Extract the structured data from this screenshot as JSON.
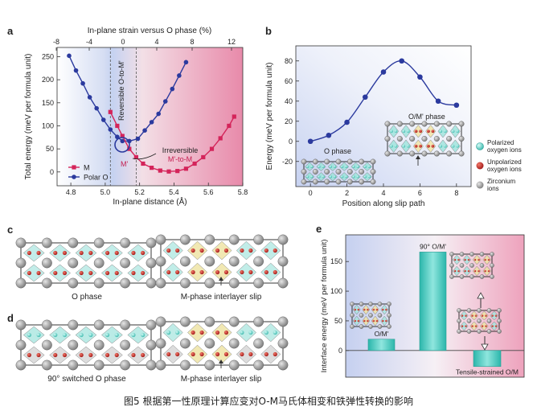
{
  "caption": "图5 根据第一性原理计算应变对O-M马氏体相变和铁弹性转换的影响",
  "colors": {
    "blue": "#2b3a9e",
    "crimson": "#d4245a",
    "cyan": "#54cfc4",
    "pink": "#ea98b2",
    "lightblue": "#c8d3f2"
  },
  "panel_a": {
    "letter": "a",
    "top_axis_label": "In-plane strain versus O phase (%)",
    "top_ticks": [
      "-8",
      "-4",
      "0",
      "4",
      "8",
      "12"
    ],
    "annotations": {
      "reversible": "Reversible O-to-M'",
      "irreversible_1": "Irreversible",
      "irreversible_2": "M'-to-M",
      "mprime": "M'"
    }
  },
  "panel_b": {
    "letter": "b",
    "annotation_mprime": "O/M' phase",
    "annotation_o": "O phase",
    "legend": [
      "Polarized oxygen ions",
      "Unpolarized oxygen ions",
      "Zirconium ions"
    ]
  },
  "panel_c": {
    "letter": "c",
    "left_label": "O phase",
    "right_label": "M-phase interlayer slip"
  },
  "panel_d": {
    "letter": "d",
    "left_label": "90° switched O phase",
    "right_label": "M-phase interlayer slip"
  },
  "chart_data": [
    {
      "type": "line",
      "panel": "a",
      "xlabel": "In-plane distance (Å)",
      "ylabel": "Total energy (meV per formula unit)",
      "xlim": [
        4.72,
        5.8
      ],
      "ylim": [
        -30,
        270
      ],
      "xticks": [
        "4.8",
        "5.0",
        "5.2",
        "5.4",
        "5.6",
        "5.8"
      ],
      "yticks": [
        "0",
        "50",
        "100",
        "150",
        "200",
        "250"
      ],
      "legend_position": "bottom-left",
      "dashed_lines_x": [
        5.03,
        5.18
      ],
      "series": [
        {
          "name": "Polar O",
          "x": [
            4.79,
            4.83,
            4.87,
            4.91,
            4.95,
            4.99,
            5.03,
            5.07,
            5.1,
            5.14,
            5.19,
            5.23,
            5.27,
            5.31,
            5.35,
            5.39,
            5.43,
            5.47
          ],
          "y": [
            252,
            220,
            192,
            162,
            138,
            113,
            92,
            76,
            67,
            67,
            72,
            90,
            108,
            126,
            153,
            180,
            209,
            238
          ]
        },
        {
          "name": "M",
          "x": [
            5.03,
            5.07,
            5.1,
            5.14,
            5.18,
            5.22,
            5.27,
            5.32,
            5.37,
            5.42,
            5.47,
            5.52,
            5.57,
            5.62,
            5.67,
            5.72,
            5.75
          ],
          "y": [
            130,
            100,
            78,
            50,
            32,
            18,
            9,
            3,
            1,
            2,
            7,
            18,
            32,
            50,
            73,
            100,
            120
          ]
        }
      ]
    },
    {
      "type": "line",
      "panel": "b",
      "xlabel": "Position along slip path",
      "ylabel": "Energy (meV per formula unit)",
      "xlim": [
        -0.8,
        8.8
      ],
      "ylim": [
        -45,
        95
      ],
      "xticks": [
        "0",
        "2",
        "4",
        "6",
        "8"
      ],
      "yticks": [
        "-20",
        "0",
        "20",
        "40",
        "60",
        "80"
      ],
      "x": [
        0,
        1,
        2,
        3,
        4,
        5,
        6,
        7,
        8
      ],
      "y": [
        0,
        6,
        19,
        44,
        69,
        80,
        64,
        40,
        36
      ]
    },
    {
      "type": "bar",
      "panel": "e",
      "letter": "e",
      "ylabel": "Interface energy (meV per formula unit)",
      "ylim": [
        -45,
        195
      ],
      "yticks": [
        "0",
        "50",
        "100",
        "150"
      ],
      "categories": [
        "O/M'",
        "90° O/M'",
        "Tensile-strained O/M"
      ],
      "values": [
        19,
        166,
        -27
      ]
    }
  ]
}
